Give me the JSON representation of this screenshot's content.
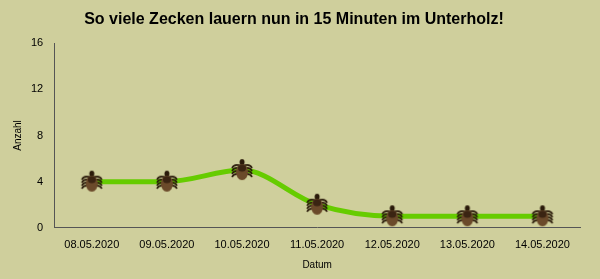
{
  "chart_data": {
    "type": "line",
    "title": "So viele Zecken lauern nun in 15 Minuten im Unterholz!",
    "x_label": "Datum",
    "y_label": "Anzahl",
    "categories": [
      "08.05.2020",
      "09.05.2020",
      "10.05.2020",
      "11.05.2020",
      "12.05.2020",
      "13.05.2020",
      "14.05.2020"
    ],
    "values": [
      4,
      4,
      5,
      2,
      1,
      1,
      1
    ],
    "color": "#66cc00",
    "marker": "tick",
    "ylim": [
      0,
      16
    ],
    "yticks": [
      0,
      4,
      8,
      12,
      16
    ],
    "grid": false
  }
}
